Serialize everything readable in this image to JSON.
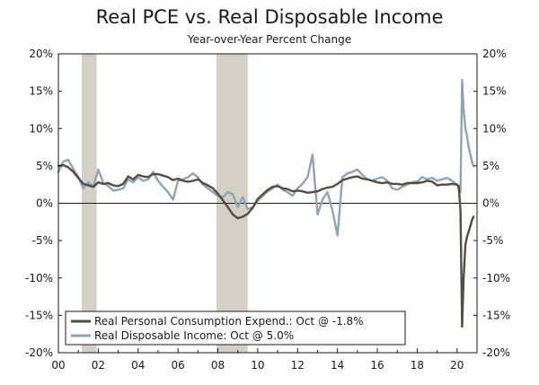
{
  "chart_data": {
    "type": "line",
    "title": "Real PCE vs. Real Disposable Income",
    "subtitle": "Year-over-Year Percent Change",
    "xlabel": "",
    "ylabel": "",
    "xlim": [
      2000,
      2021
    ],
    "ylim": [
      -20,
      20
    ],
    "x_tick_labels": [
      {
        "x": 2000,
        "label": "00"
      },
      {
        "x": 2002,
        "label": "02"
      },
      {
        "x": 2004,
        "label": "04"
      },
      {
        "x": 2006,
        "label": "06"
      },
      {
        "x": 2008,
        "label": "08"
      },
      {
        "x": 2010,
        "label": "10"
      },
      {
        "x": 2012,
        "label": "12"
      },
      {
        "x": 2014,
        "label": "14"
      },
      {
        "x": 2016,
        "label": "16"
      },
      {
        "x": 2018,
        "label": "18"
      },
      {
        "x": 2020,
        "label": "20"
      }
    ],
    "y_tick_labels": [
      {
        "y": 20,
        "label": "20%"
      },
      {
        "y": 15,
        "label": "15%"
      },
      {
        "y": 10,
        "label": "10%"
      },
      {
        "y": 5,
        "label": "5%"
      },
      {
        "y": 0,
        "label": "0%"
      },
      {
        "y": -5,
        "label": "-5%"
      },
      {
        "y": -10,
        "label": "-10%"
      },
      {
        "y": -15,
        "label": "-15%"
      },
      {
        "y": -20,
        "label": "-20%"
      }
    ],
    "recessions": [
      {
        "start": 2001.17,
        "end": 2001.92
      },
      {
        "start": 2007.92,
        "end": 2009.5
      }
    ],
    "legend_position": "bottom-left",
    "series": [
      {
        "name": "Real Personal Consumption Expend.: Oct @ -1.8%",
        "color": "#574b40",
        "x": [
          2000.0,
          2000.25,
          2000.5,
          2000.75,
          2001.0,
          2001.25,
          2001.5,
          2001.75,
          2002.0,
          2002.25,
          2002.5,
          2002.75,
          2003.0,
          2003.25,
          2003.5,
          2003.75,
          2004.0,
          2004.25,
          2004.5,
          2004.75,
          2005.0,
          2005.25,
          2005.5,
          2005.75,
          2006.0,
          2006.25,
          2006.5,
          2006.75,
          2007.0,
          2007.25,
          2007.5,
          2007.75,
          2008.0,
          2008.25,
          2008.5,
          2008.75,
          2009.0,
          2009.25,
          2009.5,
          2009.75,
          2010.0,
          2010.25,
          2010.5,
          2010.75,
          2011.0,
          2011.25,
          2011.5,
          2011.75,
          2012.0,
          2012.25,
          2012.5,
          2012.75,
          2013.0,
          2013.25,
          2013.5,
          2013.75,
          2014.0,
          2014.25,
          2014.5,
          2014.75,
          2015.0,
          2015.25,
          2015.5,
          2015.75,
          2016.0,
          2016.25,
          2016.5,
          2016.75,
          2017.0,
          2017.25,
          2017.5,
          2017.75,
          2018.0,
          2018.25,
          2018.5,
          2018.75,
          2019.0,
          2019.25,
          2019.5,
          2019.75,
          2020.0,
          2020.08,
          2020.17,
          2020.25,
          2020.33,
          2020.42,
          2020.5,
          2020.58,
          2020.67,
          2020.75,
          2020.83
        ],
        "y": [
          5.0,
          5.1,
          4.8,
          4.2,
          3.4,
          2.6,
          2.4,
          2.2,
          2.8,
          2.6,
          2.7,
          2.4,
          2.3,
          2.6,
          3.6,
          3.2,
          3.8,
          3.6,
          3.5,
          3.9,
          3.9,
          3.7,
          3.5,
          3.1,
          3.3,
          3.0,
          2.9,
          3.0,
          3.2,
          2.7,
          2.4,
          2.0,
          1.3,
          0.4,
          -0.5,
          -1.5,
          -2.0,
          -1.8,
          -1.4,
          -0.6,
          0.6,
          1.2,
          1.8,
          2.2,
          2.3,
          2.0,
          1.9,
          1.6,
          1.7,
          1.6,
          1.4,
          1.5,
          1.6,
          1.9,
          2.1,
          2.2,
          2.6,
          3.1,
          3.3,
          3.5,
          3.6,
          3.3,
          3.2,
          3.0,
          2.8,
          2.7,
          2.8,
          2.6,
          2.6,
          2.5,
          2.7,
          2.7,
          2.7,
          2.8,
          3.0,
          2.9,
          2.4,
          2.5,
          2.5,
          2.6,
          2.5,
          2.3,
          -1.0,
          -16.5,
          -10.0,
          -5.5,
          -4.5,
          -3.8,
          -3.0,
          -2.2,
          -1.8
        ]
      },
      {
        "name": "Real Disposable Income: Oct @ 5.0%",
        "color": "#8ba4b6",
        "x": [
          2000.0,
          2000.25,
          2000.5,
          2000.75,
          2001.0,
          2001.25,
          2001.5,
          2001.75,
          2002.0,
          2002.25,
          2002.5,
          2002.75,
          2003.0,
          2003.25,
          2003.5,
          2003.75,
          2004.0,
          2004.25,
          2004.5,
          2004.75,
          2005.0,
          2005.25,
          2005.5,
          2005.75,
          2006.0,
          2006.25,
          2006.5,
          2006.75,
          2007.0,
          2007.25,
          2007.5,
          2007.75,
          2008.0,
          2008.25,
          2008.5,
          2008.75,
          2009.0,
          2009.25,
          2009.5,
          2009.75,
          2010.0,
          2010.25,
          2010.5,
          2010.75,
          2011.0,
          2011.25,
          2011.5,
          2011.75,
          2012.0,
          2012.25,
          2012.5,
          2012.75,
          2013.0,
          2013.25,
          2013.5,
          2013.75,
          2014.0,
          2014.25,
          2014.5,
          2014.75,
          2015.0,
          2015.25,
          2015.5,
          2015.75,
          2016.0,
          2016.25,
          2016.5,
          2016.75,
          2017.0,
          2017.25,
          2017.5,
          2017.75,
          2018.0,
          2018.25,
          2018.5,
          2018.75,
          2019.0,
          2019.25,
          2019.5,
          2019.75,
          2020.0,
          2020.08,
          2020.17,
          2020.25,
          2020.33,
          2020.42,
          2020.5,
          2020.58,
          2020.67,
          2020.75,
          2020.83
        ],
        "y": [
          4.2,
          5.6,
          5.8,
          4.6,
          3.5,
          2.0,
          2.8,
          2.2,
          4.5,
          2.7,
          2.3,
          1.7,
          1.8,
          2.0,
          3.2,
          2.8,
          3.5,
          3.0,
          3.2,
          4.2,
          3.0,
          2.2,
          1.5,
          0.5,
          3.0,
          3.2,
          3.5,
          4.0,
          3.5,
          2.5,
          2.0,
          1.5,
          1.0,
          0.8,
          1.5,
          1.2,
          -0.5,
          0.8,
          -0.8,
          -0.5,
          0.3,
          1.0,
          1.6,
          2.0,
          2.5,
          1.8,
          1.5,
          1.0,
          2.0,
          2.6,
          3.5,
          6.5,
          -1.5,
          0.5,
          1.5,
          -1.0,
          -4.3,
          3.5,
          4.0,
          4.2,
          4.5,
          3.8,
          3.2,
          3.0,
          3.3,
          3.5,
          3.0,
          2.0,
          1.8,
          2.2,
          2.5,
          2.8,
          2.9,
          3.5,
          3.2,
          3.4,
          3.0,
          3.2,
          3.4,
          3.0,
          2.5,
          2.0,
          1.5,
          16.5,
          12.5,
          10.0,
          9.0,
          7.5,
          6.5,
          5.5,
          5.0
        ]
      }
    ]
  }
}
